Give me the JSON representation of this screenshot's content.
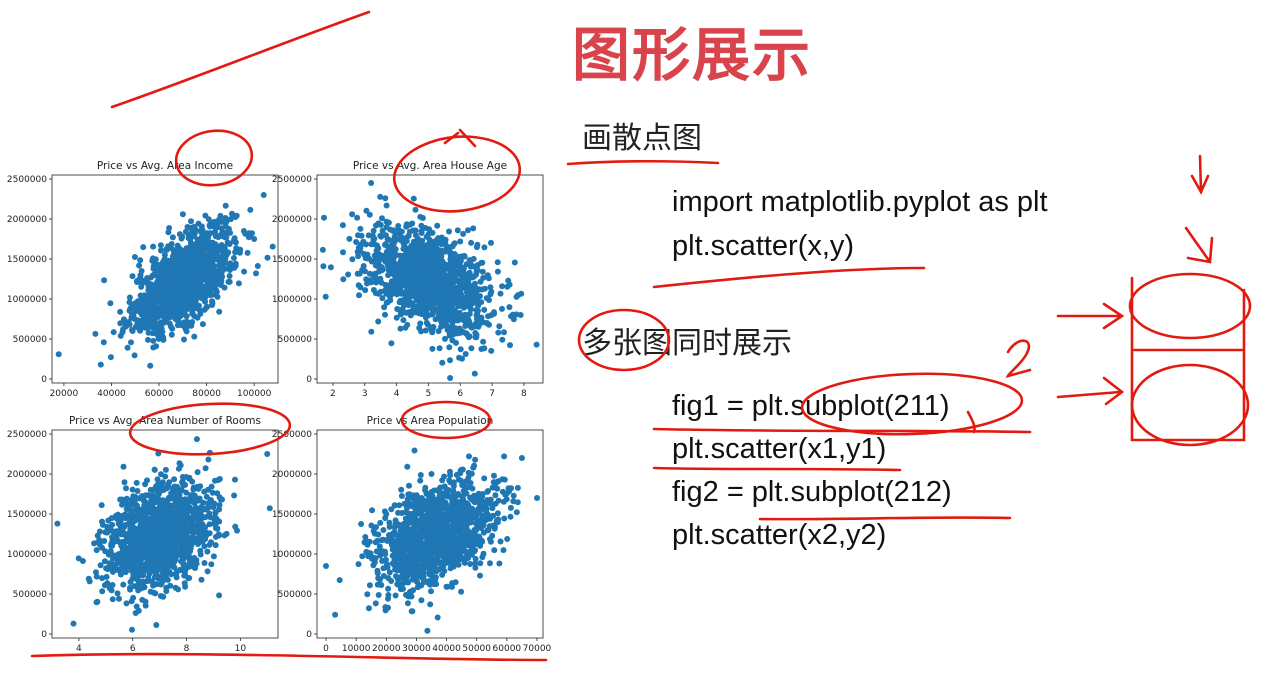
{
  "slide": {
    "title": "图形展示",
    "section1": "画散点图",
    "code1": [
      "import matplotlib.pyplot as plt",
      "plt.scatter(x,y)"
    ],
    "section2": "多张图同时展示",
    "code2": [
      "fig1 = plt.subplot(211)",
      "plt.scatter(x1,y1)",
      "fig2 = plt.subplot(212)",
      "plt.scatter(x2,y2)"
    ],
    "annotation_number": "2"
  },
  "colors": {
    "title": "#d9434b",
    "points": "#1f77b4",
    "annotation": "#e21b10"
  },
  "chart_data": [
    {
      "type": "scatter",
      "title": "Price vs Avg. Area Income",
      "xticks": [
        "20000",
        "40000",
        "60000",
        "80000",
        "100000"
      ],
      "xtick_values": [
        20000,
        40000,
        60000,
        80000,
        100000
      ],
      "xlim": [
        15000,
        110000
      ],
      "yticks": [
        "0",
        "500000",
        "1000000",
        "1500000",
        "2000000",
        "2500000"
      ],
      "ylim": [
        -50000,
        2550000
      ],
      "cloud": {
        "cx": 70000,
        "cy": 1230000,
        "sx": 10500,
        "sy": 340000,
        "corr": 0.64
      },
      "outliers": [
        [
          17800,
          310000
        ],
        [
          104000,
          2300000
        ],
        [
          100000,
          1750000
        ],
        [
          35500,
          180000
        ]
      ]
    },
    {
      "type": "scatter",
      "title": "Price vs Avg. Area House Age",
      "xticks": [
        "2",
        "3",
        "4",
        "5",
        "6",
        "7",
        "8"
      ],
      "xtick_values": [
        2,
        3,
        4,
        5,
        6,
        7,
        8
      ],
      "xlim": [
        1.5,
        8.6
      ],
      "yticks": [
        "0",
        "500000",
        "1000000",
        "1500000",
        "2000000",
        "2500000"
      ],
      "ylim": [
        -50000,
        2550000
      ],
      "cloud": {
        "cx": 5.0,
        "cy": 1230000,
        "sx": 1.0,
        "sy": 340000,
        "corr": -0.45
      },
      "outliers": [
        [
          1.7,
          1410000
        ],
        [
          8.4,
          430000
        ],
        [
          3.2,
          2450000
        ],
        [
          7.9,
          800000
        ]
      ]
    },
    {
      "type": "scatter",
      "title": "Price vs Avg. Area Number of Rooms",
      "xticks": [
        "4",
        "6",
        "8",
        "10"
      ],
      "xtick_values": [
        4,
        6,
        8,
        10
      ],
      "xlim": [
        3,
        11.4
      ],
      "yticks": [
        "0",
        "500000",
        "1000000",
        "1500000",
        "2000000",
        "2500000"
      ],
      "ylim": [
        -50000,
        2550000
      ],
      "cloud": {
        "cx": 7.0,
        "cy": 1230000,
        "sx": 1.0,
        "sy": 340000,
        "corr": 0.34
      },
      "outliers": [
        [
          3.2,
          1380000
        ],
        [
          3.8,
          130000
        ],
        [
          11.0,
          2250000
        ],
        [
          9.8,
          1930000
        ]
      ]
    },
    {
      "type": "scatter",
      "title": "Price vs Area Population",
      "xticks": [
        "0",
        "10000",
        "20000",
        "30000",
        "40000",
        "50000",
        "60000",
        "70000"
      ],
      "xtick_values": [
        0,
        10000,
        20000,
        30000,
        40000,
        50000,
        60000,
        70000
      ],
      "xlim": [
        -3000,
        72000
      ],
      "yticks": [
        "0",
        "500000",
        "1000000",
        "1500000",
        "2000000",
        "2500000"
      ],
      "ylim": [
        -50000,
        2550000
      ],
      "cloud": {
        "cx": 36000,
        "cy": 1230000,
        "sx": 9900,
        "sy": 340000,
        "corr": 0.41
      },
      "outliers": [
        [
          0,
          850000
        ],
        [
          3000,
          240000
        ],
        [
          70000,
          1700000
        ],
        [
          65000,
          2200000
        ]
      ]
    }
  ]
}
